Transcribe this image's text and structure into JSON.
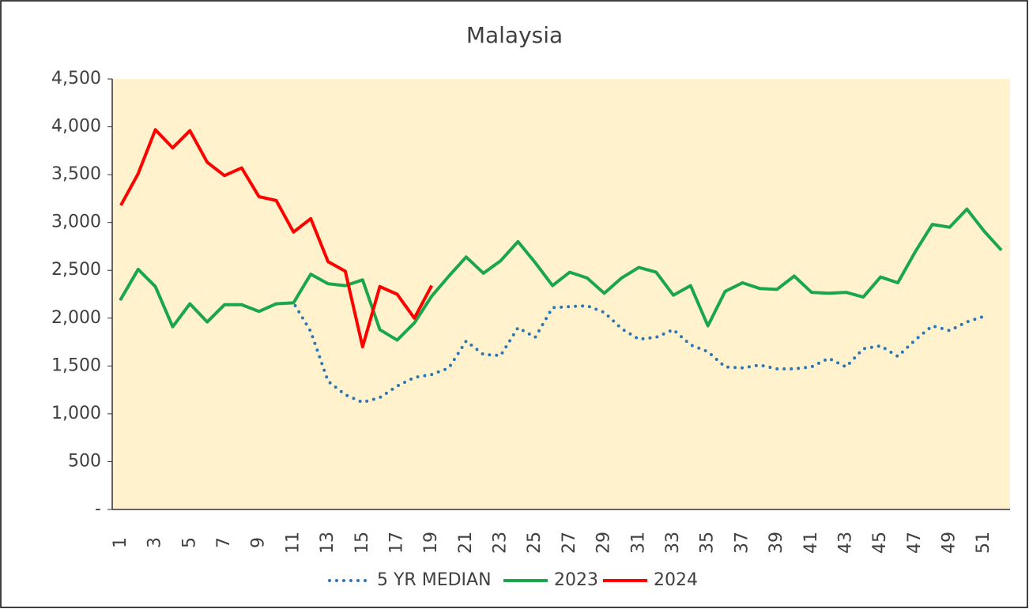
{
  "chart_data": {
    "type": "line",
    "title": "Malaysia",
    "categories": [
      "1",
      null,
      "3",
      null,
      "5",
      null,
      "7",
      null,
      "9",
      null,
      "11",
      null,
      "13",
      null,
      "15",
      null,
      "17",
      null,
      "19",
      null,
      "21",
      null,
      "23",
      null,
      "25",
      null,
      "27",
      null,
      "29",
      null,
      "31",
      null,
      "33",
      null,
      "35",
      null,
      "37",
      null,
      "39",
      null,
      "41",
      null,
      "43",
      null,
      "45",
      null,
      "47",
      null,
      "49",
      null,
      "51",
      null
    ],
    "series": [
      {
        "name": "5 YR MEDIAN",
        "color": "#2e75b6",
        "dash": "dotted",
        "values": [
          2200,
          2510,
          2330,
          1910,
          2150,
          1960,
          2140,
          2140,
          2070,
          2150,
          2160,
          1860,
          1340,
          1200,
          1120,
          1170,
          1290,
          1380,
          1410,
          1480,
          1760,
          1620,
          1610,
          1900,
          1800,
          2110,
          2120,
          2130,
          2060,
          1890,
          1780,
          1800,
          1880,
          1720,
          1650,
          1490,
          1480,
          1510,
          1470,
          1470,
          1490,
          1580,
          1490,
          1680,
          1710,
          1600,
          1770,
          1920,
          1870,
          1960,
          2020,
          null
        ]
      },
      {
        "name": "2023",
        "color": "#1aa64a",
        "values": [
          2200,
          2510,
          2330,
          1910,
          2150,
          1960,
          2140,
          2140,
          2070,
          2150,
          2160,
          2460,
          2360,
          2340,
          2400,
          1880,
          1770,
          1950,
          2230,
          2440,
          2640,
          2470,
          2600,
          2800,
          2580,
          2340,
          2480,
          2420,
          2260,
          2420,
          2530,
          2480,
          2240,
          2340,
          1920,
          2280,
          2370,
          2310,
          2300,
          2440,
          2270,
          2260,
          2270,
          2220,
          2430,
          2370,
          2690,
          2980,
          2950,
          3140,
          2910,
          2710
        ]
      },
      {
        "name": "2024",
        "color": "#ff0000",
        "values": [
          3180,
          3510,
          3970,
          3780,
          3960,
          3630,
          3490,
          3570,
          3270,
          3230,
          2900,
          3040,
          2590,
          2490,
          1700,
          2330,
          2250,
          2000,
          2340,
          null,
          null,
          null,
          null,
          null,
          null,
          null,
          null,
          null,
          null,
          null,
          null,
          null,
          null,
          null,
          null,
          null,
          null,
          null,
          null,
          null,
          null,
          null,
          null,
          null,
          null,
          null,
          null,
          null,
          null,
          null,
          null,
          null
        ]
      }
    ],
    "ylim": [
      0,
      4500
    ],
    "yticks": [
      {
        "value": 0,
        "label": "-"
      },
      500,
      {
        "value": 1000,
        "label": "1,000"
      },
      {
        "value": 1500,
        "label": "1,500"
      },
      {
        "value": 2000,
        "label": "2,000"
      },
      {
        "value": 2500,
        "label": "2,500"
      },
      {
        "value": 3000,
        "label": "3,000"
      },
      {
        "value": 3500,
        "label": "3,500"
      },
      {
        "value": 4000,
        "label": "4,000"
      },
      {
        "value": 4500,
        "label": "4,500"
      }
    ],
    "plot_background": "#fff2cc",
    "legend": "bottom"
  }
}
